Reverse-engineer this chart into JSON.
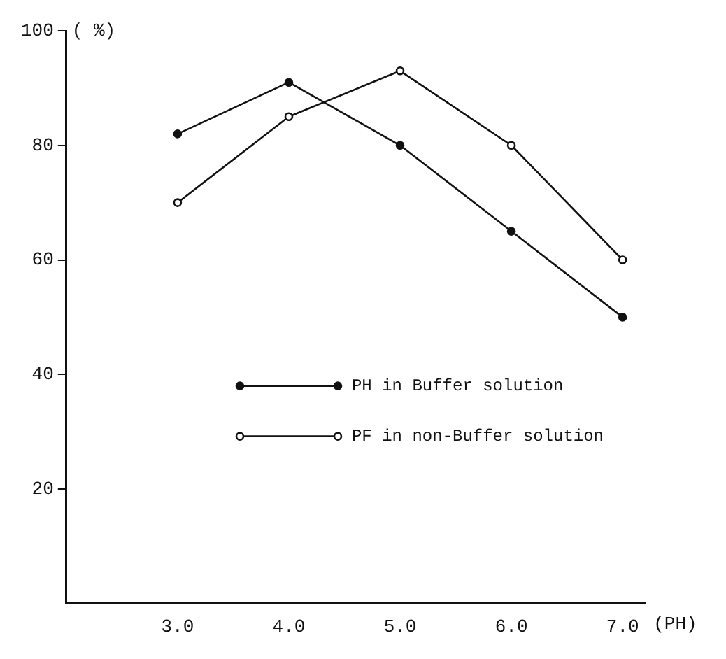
{
  "chart_data": {
    "type": "line",
    "ylabel": "( %)",
    "xlabel": "(PH)",
    "x": [
      3,
      4,
      5,
      6,
      7
    ],
    "series": [
      {
        "name": "PH in Buffer solution",
        "color": "#111111",
        "values": [
          82,
          91,
          80,
          65,
          50
        ],
        "marker": "circle"
      },
      {
        "name": "PF in non-Buffer solution",
        "color": "#111111",
        "values": [
          70,
          85,
          93,
          80,
          60
        ],
        "marker": "open-circle"
      }
    ],
    "xlim": [
      2,
      7.2
    ],
    "xticks": [
      {
        "value": 3,
        "label": "3.0"
      },
      {
        "value": 4,
        "label": "4.0"
      },
      {
        "value": 5,
        "label": "5.0"
      },
      {
        "value": 6,
        "label": "6.0"
      },
      {
        "value": 7,
        "label": "7.0"
      }
    ],
    "ylim": [
      0,
      100
    ],
    "yticks": [
      20,
      40,
      60,
      80,
      100
    ],
    "grid": false,
    "legend": "center right",
    "line_style": "solid"
  }
}
